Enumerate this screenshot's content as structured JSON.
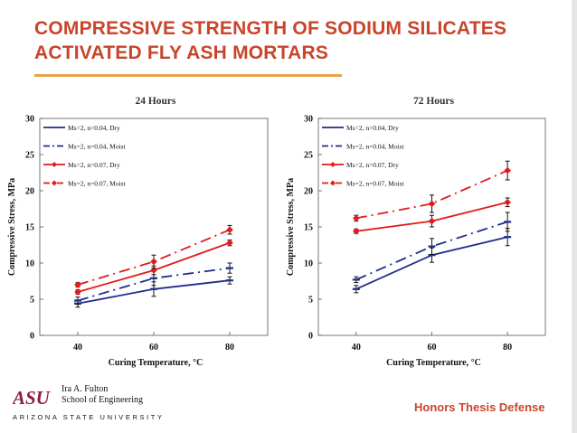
{
  "slide": {
    "title_line1": "COMPRESSIVE STRENGTH OF SODIUM SILICATES",
    "title_line2": "ACTIVATED FLY ASH MORTARS",
    "footer_tag": "Honors Thesis Defense",
    "logo": {
      "mark": "ASU",
      "name_line1": "Ira A. Fulton",
      "name_line2": "School of Engineering",
      "university": "ARIZONA STATE UNIVERSITY"
    },
    "colors": {
      "title": "#c8452b",
      "rule": "#e8a24a",
      "navy": "#1f2d8c",
      "red": "#e31a1c"
    }
  },
  "chart_data": [
    {
      "type": "line",
      "title": "24 Hours",
      "xlabel": "Curing Temperature, °C",
      "ylabel": "Compressive Stress, MPa",
      "x": [
        40,
        60,
        80
      ],
      "xticks": [
        "40",
        "60",
        "80"
      ],
      "ylim": [
        0,
        30
      ],
      "yticks": [
        "0",
        "5",
        "10",
        "15",
        "20",
        "25",
        "30"
      ],
      "legend_position": "top-left",
      "series": [
        {
          "name": "Ms=2, n=0.04, Dry",
          "values": [
            4.4,
            6.4,
            7.6
          ],
          "errors": [
            0.5,
            1.0,
            0.5
          ],
          "color": "#1f2d8c",
          "dash": "solid",
          "marker": "dash"
        },
        {
          "name": "Ms=2, n=0.04, Moist",
          "values": [
            4.8,
            7.9,
            9.3
          ],
          "errors": [
            0.5,
            1.0,
            0.7
          ],
          "color": "#1f2d8c",
          "dash": "dashdot",
          "marker": "dash"
        },
        {
          "name": "Ms=2, n=0.07, Dry",
          "values": [
            6.0,
            9.0,
            12.8
          ],
          "errors": [
            0.3,
            0.6,
            0.4
          ],
          "color": "#e31a1c",
          "dash": "solid",
          "marker": "diamond"
        },
        {
          "name": "Ms=2, n=0.07, Moist",
          "values": [
            7.0,
            10.2,
            14.6
          ],
          "errors": [
            0.3,
            0.9,
            0.6
          ],
          "color": "#e31a1c",
          "dash": "dashdot",
          "marker": "diamond"
        }
      ]
    },
    {
      "type": "line",
      "title": "72 Hours",
      "xlabel": "Curing Temperature, °C",
      "ylabel": "Compressive Stress, MPa",
      "x": [
        40,
        60,
        80
      ],
      "xticks": [
        "40",
        "60",
        "80"
      ],
      "ylim": [
        0,
        30
      ],
      "yticks": [
        "0",
        "5",
        "10",
        "15",
        "20",
        "25",
        "30"
      ],
      "legend_position": "top-left",
      "series": [
        {
          "name": "Ms=2, n=0.04, Dry",
          "values": [
            6.4,
            11.1,
            13.6
          ],
          "errors": [
            0.5,
            1.0,
            1.2
          ],
          "color": "#1f2d8c",
          "dash": "solid",
          "marker": "dash"
        },
        {
          "name": "Ms=2, n=0.04, Moist",
          "values": [
            7.7,
            12.3,
            15.7
          ],
          "errors": [
            0.4,
            1.1,
            1.3
          ],
          "color": "#1f2d8c",
          "dash": "dashdot",
          "marker": "dash"
        },
        {
          "name": "Ms=2, n=0.07, Dry",
          "values": [
            14.4,
            15.8,
            18.4
          ],
          "errors": [
            0.3,
            0.8,
            0.6
          ],
          "color": "#e31a1c",
          "dash": "solid",
          "marker": "diamond"
        },
        {
          "name": "Ms=2, n=0.07, Moist",
          "values": [
            16.2,
            18.2,
            22.8
          ],
          "errors": [
            0.4,
            1.2,
            1.3
          ],
          "color": "#e31a1c",
          "dash": "dashdot",
          "marker": "diamond"
        }
      ]
    }
  ]
}
